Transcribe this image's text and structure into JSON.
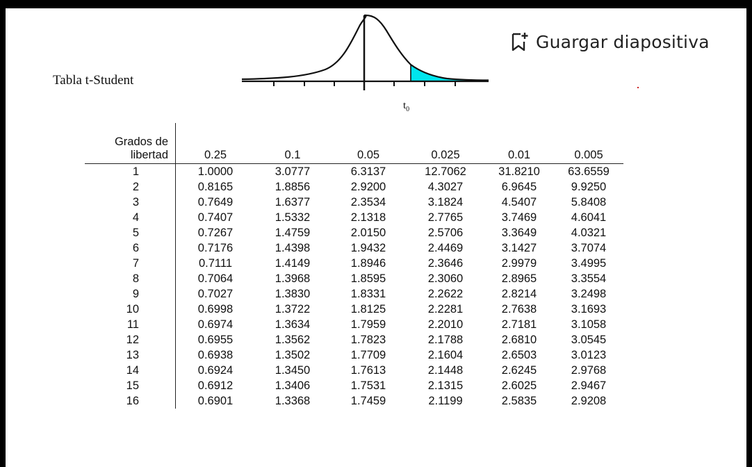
{
  "slide": {
    "table_title": "Tabla t-Student",
    "figure_label": "t",
    "figure_label_sub": "0",
    "save_button": "Guargar diapositiva",
    "icon": "bookmark-plus-icon"
  },
  "table": {
    "df_header_line1": "Grados de",
    "df_header_line2": "libertad",
    "alphas": [
      "0.25",
      "0.1",
      "0.05",
      "0.025",
      "0.01",
      "0.005"
    ],
    "rows": [
      {
        "df": "1",
        "v": [
          "1.0000",
          "3.0777",
          "6.3137",
          "12.7062",
          "31.8210",
          "63.6559"
        ]
      },
      {
        "df": "2",
        "v": [
          "0.8165",
          "1.8856",
          "2.9200",
          "4.3027",
          "6.9645",
          "9.9250"
        ]
      },
      {
        "df": "3",
        "v": [
          "0.7649",
          "1.6377",
          "2.3534",
          "3.1824",
          "4.5407",
          "5.8408"
        ]
      },
      {
        "df": "4",
        "v": [
          "0.7407",
          "1.5332",
          "2.1318",
          "2.7765",
          "3.7469",
          "4.6041"
        ]
      },
      {
        "df": "5",
        "v": [
          "0.7267",
          "1.4759",
          "2.0150",
          "2.5706",
          "3.3649",
          "4.0321"
        ]
      },
      {
        "df": "6",
        "v": [
          "0.7176",
          "1.4398",
          "1.9432",
          "2.4469",
          "3.1427",
          "3.7074"
        ]
      },
      {
        "df": "7",
        "v": [
          "0.7111",
          "1.4149",
          "1.8946",
          "2.3646",
          "2.9979",
          "3.4995"
        ]
      },
      {
        "df": "8",
        "v": [
          "0.7064",
          "1.3968",
          "1.8595",
          "2.3060",
          "2.8965",
          "3.3554"
        ]
      },
      {
        "df": "9",
        "v": [
          "0.7027",
          "1.3830",
          "1.8331",
          "2.2622",
          "2.8214",
          "3.2498"
        ]
      },
      {
        "df": "10",
        "v": [
          "0.6998",
          "1.3722",
          "1.8125",
          "2.2281",
          "2.7638",
          "3.1693"
        ]
      },
      {
        "df": "11",
        "v": [
          "0.6974",
          "1.3634",
          "1.7959",
          "2.2010",
          "2.7181",
          "3.1058"
        ]
      },
      {
        "df": "12",
        "v": [
          "0.6955",
          "1.3562",
          "1.7823",
          "2.1788",
          "2.6810",
          "3.0545"
        ]
      },
      {
        "df": "13",
        "v": [
          "0.6938",
          "1.3502",
          "1.7709",
          "2.1604",
          "2.6503",
          "3.0123"
        ]
      },
      {
        "df": "14",
        "v": [
          "0.6924",
          "1.3450",
          "1.7613",
          "2.1448",
          "2.6245",
          "2.9768"
        ]
      },
      {
        "df": "15",
        "v": [
          "0.6912",
          "1.3406",
          "1.7531",
          "2.1315",
          "2.6025",
          "2.9467"
        ]
      },
      {
        "df": "16",
        "v": [
          "0.6901",
          "1.3368",
          "1.7459",
          "2.1199",
          "2.5835",
          "2.9208"
        ]
      }
    ]
  }
}
